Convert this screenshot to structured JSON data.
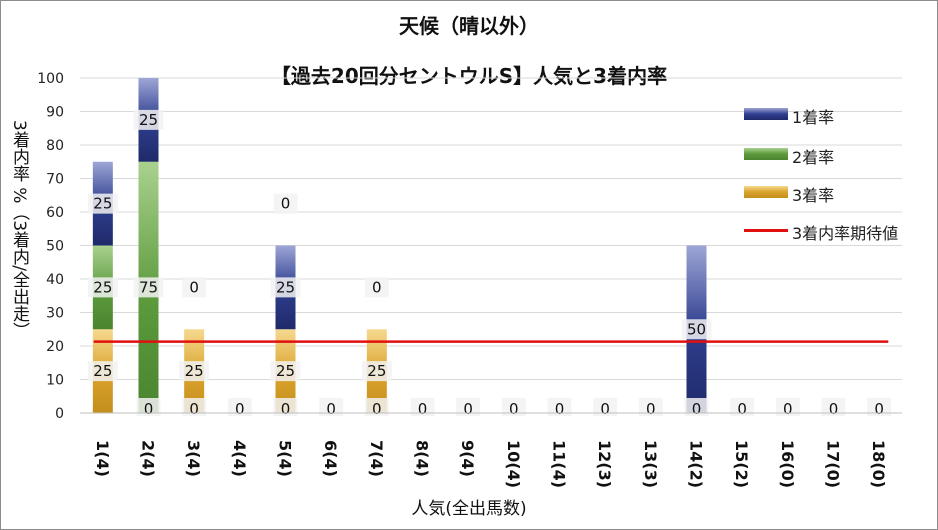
{
  "chart_data": {
    "type": "bar",
    "title": "天候（晴以外）",
    "subtitle": "【過去20回分セントウルS】人気と3着内率",
    "xlabel": "人気(全出馬数)",
    "ylabel": "3着内率 %（3着内/全出走）",
    "ylim": [
      0,
      100
    ],
    "yticks": [
      0,
      10,
      20,
      30,
      40,
      50,
      60,
      70,
      80,
      90,
      100
    ],
    "grid": true,
    "legend_position": "right",
    "categories": [
      "1(4)",
      "2(4)",
      "3(4)",
      "4(4)",
      "5(4)",
      "6(4)",
      "7(4)",
      "8(4)",
      "9(4)",
      "10(4)",
      "11(4)",
      "12(3)",
      "13(3)",
      "14(2)",
      "15(2)",
      "16(0)",
      "17(0)",
      "18(0)"
    ],
    "stacked": true,
    "series": [
      {
        "name": "3着率",
        "color": "#d9a22c",
        "values": [
          25,
          0,
          25,
          0,
          25,
          0,
          25,
          0,
          0,
          0,
          0,
          0,
          0,
          0,
          0,
          0,
          0,
          0
        ],
        "labels": [
          "25",
          "",
          "25",
          "",
          "25",
          "",
          "25",
          "",
          "",
          "",
          "",
          "",
          "",
          "",
          "",
          "",
          "",
          ""
        ]
      },
      {
        "name": "2着率",
        "color": "#5c9a3c",
        "values": [
          25,
          75,
          0,
          0,
          0,
          0,
          0,
          0,
          0,
          0,
          0,
          0,
          0,
          0,
          0,
          0,
          0,
          0
        ],
        "labels": [
          "25",
          "75",
          "",
          "",
          "",
          "",
          "",
          "",
          "",
          "",
          "",
          "",
          "",
          "",
          "",
          "",
          "",
          ""
        ]
      },
      {
        "name": "1着率",
        "color": "#2f3f8f",
        "values": [
          25,
          25,
          0,
          0,
          25,
          0,
          0,
          0,
          0,
          0,
          0,
          0,
          0,
          50,
          0,
          0,
          0,
          0
        ],
        "labels": [
          "25",
          "25",
          "",
          "",
          "25",
          "",
          "",
          "",
          "",
          "",
          "",
          "",
          "",
          "50",
          "",
          "",
          "",
          ""
        ]
      }
    ],
    "zero_labels": [
      "",
      "0",
      "0",
      "0",
      "0",
      "0",
      "0",
      "0",
      "0",
      "0",
      "0",
      "0",
      "0",
      "0",
      "0",
      "0",
      "0",
      "0"
    ],
    "top_labels": [
      "",
      "",
      "0",
      "",
      "0",
      "",
      "0",
      "",
      "",
      "",
      "",
      "",
      "",
      "",
      "",
      "",
      "",
      ""
    ],
    "reference_line": {
      "name": "3着内率期待値",
      "value": 21.3,
      "color": "#e01010"
    }
  }
}
